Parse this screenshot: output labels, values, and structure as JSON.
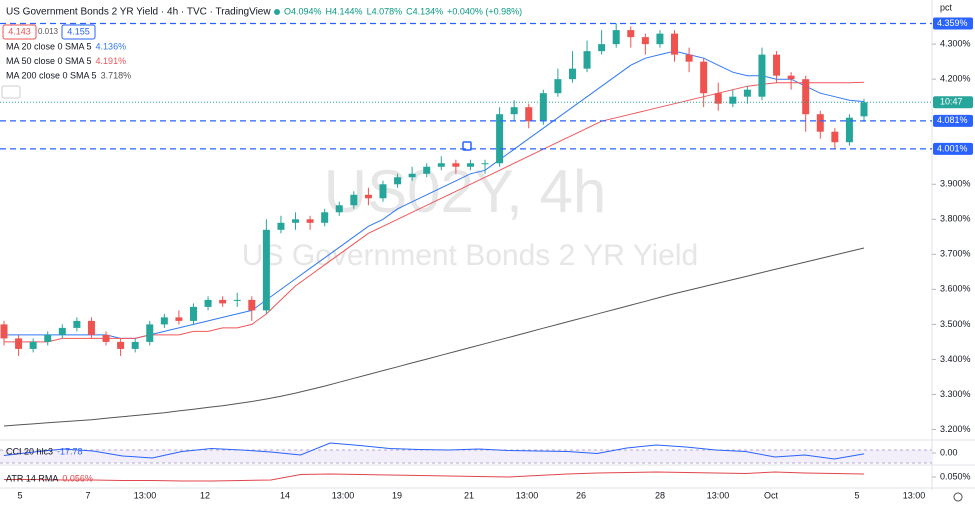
{
  "chart_data": {
    "type": "candlestick",
    "title": "US Government Bonds 2 YR Yield · 4h · TVC · TradingView",
    "quote": [
      "O4.094%",
      "H4.144%",
      "L4.078%",
      "C4.134%",
      "+0.040% (+0.98%)"
    ],
    "bid_ask": [
      "4.143",
      "0.013",
      "4.155"
    ],
    "watermark": [
      "US02Y, 4h",
      "US Government Bonds 2 YR Yield"
    ],
    "unit": "pct",
    "countdown": "10:47",
    "up_color": "#26a69a",
    "down_color": "#ef5350",
    "xlabels": [
      "5",
      "7",
      "13:00",
      "12",
      "14",
      "13:00",
      "19",
      "21",
      "13:00",
      "26",
      "28",
      "13:00",
      "Oct",
      "5",
      "13:00"
    ],
    "ylim": [
      3.17,
      4.426
    ],
    "yticks": [
      {
        "value": 4.3,
        "label": "4.300%"
      },
      {
        "value": 4.2,
        "label": "4.200%"
      },
      {
        "value": 3.9,
        "label": "3.900%"
      },
      {
        "value": 3.8,
        "label": "3.800%"
      },
      {
        "value": 3.7,
        "label": "3.700%"
      },
      {
        "value": 3.6,
        "label": "3.600%"
      },
      {
        "value": 3.5,
        "label": "3.500%"
      },
      {
        "value": 3.4,
        "label": "3.400%"
      },
      {
        "value": 3.3,
        "label": "3.300%"
      },
      {
        "value": 3.2,
        "label": "3.200%"
      }
    ],
    "levels": [
      {
        "value": 4.359,
        "label": "4.359%"
      },
      {
        "value": 4.081,
        "label": "4.081%"
      },
      {
        "value": 4.001,
        "label": "4.001%"
      }
    ],
    "ohlc": [
      [
        3.5,
        3.51,
        3.44,
        3.46
      ],
      [
        3.46,
        3.47,
        3.41,
        3.43
      ],
      [
        3.43,
        3.46,
        3.42,
        3.45
      ],
      [
        3.45,
        3.48,
        3.44,
        3.47
      ],
      [
        3.47,
        3.5,
        3.46,
        3.49
      ],
      [
        3.49,
        3.52,
        3.48,
        3.51
      ],
      [
        3.51,
        3.52,
        3.46,
        3.47
      ],
      [
        3.47,
        3.48,
        3.44,
        3.45
      ],
      [
        3.45,
        3.46,
        3.41,
        3.43
      ],
      [
        3.43,
        3.46,
        3.42,
        3.45
      ],
      [
        3.45,
        3.51,
        3.44,
        3.5
      ],
      [
        3.5,
        3.53,
        3.49,
        3.52
      ],
      [
        3.52,
        3.54,
        3.5,
        3.51
      ],
      [
        3.51,
        3.56,
        3.5,
        3.55
      ],
      [
        3.55,
        3.58,
        3.54,
        3.57
      ],
      [
        3.57,
        3.58,
        3.55,
        3.56
      ],
      [
        3.57,
        3.59,
        3.55,
        3.57
      ],
      [
        3.57,
        3.58,
        3.51,
        3.54
      ],
      [
        3.54,
        3.8,
        3.53,
        3.77
      ],
      [
        3.77,
        3.81,
        3.76,
        3.79
      ],
      [
        3.79,
        3.82,
        3.77,
        3.8
      ],
      [
        3.8,
        3.81,
        3.77,
        3.79
      ],
      [
        3.79,
        3.83,
        3.78,
        3.82
      ],
      [
        3.82,
        3.85,
        3.81,
        3.84
      ],
      [
        3.84,
        3.88,
        3.83,
        3.87
      ],
      [
        3.87,
        3.89,
        3.84,
        3.86
      ],
      [
        3.86,
        3.91,
        3.85,
        3.9
      ],
      [
        3.9,
        3.93,
        3.89,
        3.92
      ],
      [
        3.92,
        3.95,
        3.91,
        3.93
      ],
      [
        3.93,
        3.96,
        3.92,
        3.95
      ],
      [
        3.95,
        3.98,
        3.94,
        3.96
      ],
      [
        3.96,
        3.97,
        3.93,
        3.95
      ],
      [
        3.95,
        3.97,
        3.94,
        3.96
      ],
      [
        3.96,
        3.97,
        3.93,
        3.96
      ],
      [
        3.96,
        4.12,
        3.95,
        4.1
      ],
      [
        4.1,
        4.14,
        4.08,
        4.12
      ],
      [
        4.12,
        4.13,
        4.06,
        4.08
      ],
      [
        4.08,
        4.17,
        4.07,
        4.16
      ],
      [
        4.16,
        4.23,
        4.15,
        4.2
      ],
      [
        4.2,
        4.28,
        4.19,
        4.23
      ],
      [
        4.23,
        4.31,
        4.22,
        4.28
      ],
      [
        4.28,
        4.34,
        4.27,
        4.3
      ],
      [
        4.3,
        4.359,
        4.29,
        4.34
      ],
      [
        4.34,
        4.35,
        4.29,
        4.32
      ],
      [
        4.32,
        4.33,
        4.27,
        4.3
      ],
      [
        4.3,
        4.34,
        4.29,
        4.33
      ],
      [
        4.33,
        4.34,
        4.25,
        4.27
      ],
      [
        4.27,
        4.29,
        4.22,
        4.25
      ],
      [
        4.25,
        4.26,
        4.12,
        4.16
      ],
      [
        4.16,
        4.19,
        4.11,
        4.13
      ],
      [
        4.13,
        4.17,
        4.12,
        4.15
      ],
      [
        4.15,
        4.18,
        4.13,
        4.17
      ],
      [
        4.15,
        4.29,
        4.14,
        4.27
      ],
      [
        4.27,
        4.28,
        4.19,
        4.21
      ],
      [
        4.21,
        4.22,
        4.17,
        4.2
      ],
      [
        4.2,
        4.21,
        4.05,
        4.1
      ],
      [
        4.1,
        4.11,
        4.03,
        4.05
      ],
      [
        4.05,
        4.06,
        4.0,
        4.02
      ],
      [
        4.02,
        4.1,
        4.01,
        4.09
      ],
      [
        4.094,
        4.144,
        4.078,
        4.134
      ]
    ],
    "series": [
      {
        "name": "MA 20 close 0 SMA 5",
        "color": "#3179f5",
        "value_label": "4.136%",
        "values": [
          3.47,
          3.47,
          3.47,
          3.47,
          3.47,
          3.47,
          3.47,
          3.47,
          3.46,
          3.46,
          3.47,
          3.48,
          3.49,
          3.5,
          3.51,
          3.52,
          3.53,
          3.54,
          3.57,
          3.6,
          3.63,
          3.66,
          3.69,
          3.72,
          3.75,
          3.78,
          3.8,
          3.83,
          3.85,
          3.87,
          3.89,
          3.91,
          3.93,
          3.94,
          3.97,
          4.0,
          4.03,
          4.06,
          4.09,
          4.12,
          4.15,
          4.18,
          4.21,
          4.24,
          4.26,
          4.27,
          4.28,
          4.27,
          4.26,
          4.24,
          4.22,
          4.21,
          4.21,
          4.2,
          4.2,
          4.18,
          4.16,
          4.15,
          4.14,
          4.136
        ]
      },
      {
        "name": "MA 50 close 0 SMA 5",
        "color": "#f0575a",
        "value_label": "4.191%",
        "values": [
          3.45,
          3.45,
          3.45,
          3.45,
          3.46,
          3.46,
          3.46,
          3.46,
          3.46,
          3.46,
          3.47,
          3.47,
          3.47,
          3.48,
          3.48,
          3.49,
          3.49,
          3.5,
          3.53,
          3.57,
          3.61,
          3.64,
          3.67,
          3.7,
          3.73,
          3.76,
          3.78,
          3.8,
          3.82,
          3.84,
          3.86,
          3.88,
          3.9,
          3.92,
          3.94,
          3.96,
          3.98,
          4.0,
          4.02,
          4.04,
          4.06,
          4.08,
          4.09,
          4.1,
          4.11,
          4.12,
          4.13,
          4.14,
          4.15,
          4.16,
          4.17,
          4.18,
          4.185,
          4.19,
          4.19,
          4.19,
          4.19,
          4.19,
          4.19,
          4.191
        ]
      },
      {
        "name": "MA 200 close 0 SMA 5",
        "color": "#555555",
        "value_label": "3.718%",
        "values": [
          3.21,
          3.213,
          3.216,
          3.219,
          3.222,
          3.225,
          3.228,
          3.232,
          3.236,
          3.24,
          3.244,
          3.248,
          3.253,
          3.258,
          3.263,
          3.268,
          3.274,
          3.28,
          3.287,
          3.295,
          3.304,
          3.314,
          3.324,
          3.335,
          3.346,
          3.357,
          3.368,
          3.379,
          3.39,
          3.401,
          3.412,
          3.423,
          3.434,
          3.445,
          3.456,
          3.467,
          3.478,
          3.489,
          3.5,
          3.511,
          3.522,
          3.533,
          3.544,
          3.555,
          3.566,
          3.577,
          3.588,
          3.598,
          3.608,
          3.618,
          3.628,
          3.638,
          3.648,
          3.658,
          3.668,
          3.678,
          3.688,
          3.698,
          3.708,
          3.718
        ]
      }
    ],
    "panes": [
      {
        "name": "CCI 20 hlc3",
        "value_label": "-17.78",
        "color": "#2962ff",
        "ylim": [
          -220,
          220
        ],
        "yticks": [
          {
            "value": 0,
            "label": "0.00"
          }
        ],
        "values": [
          -50,
          20,
          80,
          40,
          -60,
          -100,
          30,
          90,
          60,
          20,
          -40,
          200,
          150,
          90,
          70,
          60,
          80,
          50,
          40,
          30,
          -10,
          100,
          160,
          120,
          60,
          30,
          -80,
          -40,
          -120,
          -17.78
        ]
      },
      {
        "name": "ATR 14 RMA",
        "value_label": "0.056%",
        "color": "#e0464c",
        "ylim": [
          0.03,
          0.07
        ],
        "yticks": [
          {
            "value": 0.05,
            "label": "0.050%"
          }
        ],
        "values": [
          0.045,
          0.045,
          0.044,
          0.044,
          0.043,
          0.043,
          0.042,
          0.042,
          0.043,
          0.044,
          0.055,
          0.056,
          0.055,
          0.054,
          0.053,
          0.052,
          0.051,
          0.05,
          0.053,
          0.056,
          0.058,
          0.059,
          0.06,
          0.059,
          0.058,
          0.057,
          0.06,
          0.058,
          0.057,
          0.056
        ]
      }
    ]
  }
}
